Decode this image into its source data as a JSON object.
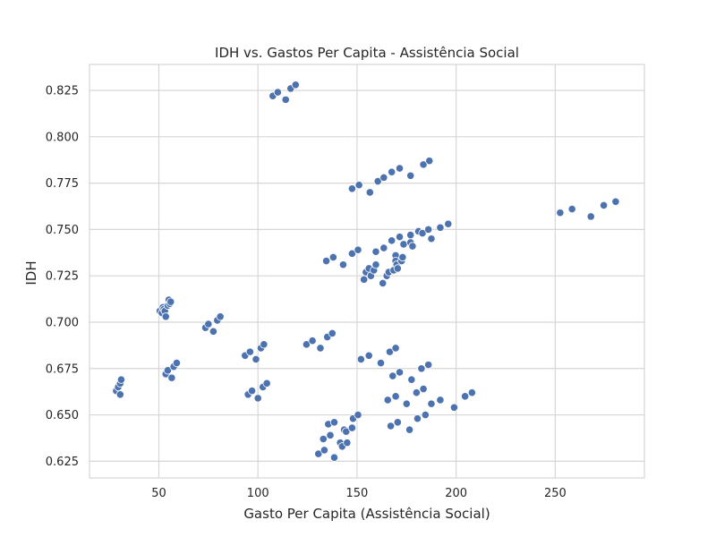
{
  "chart_data": {
    "type": "scatter",
    "title": "IDH vs. Gastos Per Capita - Assistência Social",
    "xlabel": "Gasto Per Capita (Assistência Social)",
    "ylabel": "IDH",
    "xlim": [
      15,
      295
    ],
    "ylim": [
      0.616,
      0.839
    ],
    "xticks": [
      50,
      100,
      150,
      200,
      250
    ],
    "xtick_labels": [
      "50",
      "100",
      "150",
      "200",
      "250"
    ],
    "yticks": [
      0.625,
      0.65,
      0.675,
      0.7,
      0.725,
      0.75,
      0.775,
      0.8,
      0.825
    ],
    "ytick_labels": [
      "0.625",
      "0.650",
      "0.675",
      "0.700",
      "0.725",
      "0.750",
      "0.775",
      "0.800",
      "0.825"
    ],
    "grid": true,
    "point_color": "#4c72b0",
    "series": [
      {
        "points": [
          [
            28.5,
            0.663
          ],
          [
            29.5,
            0.665
          ],
          [
            30.5,
            0.661
          ],
          [
            30.5,
            0.667
          ],
          [
            31,
            0.669
          ],
          [
            50.5,
            0.706
          ],
          [
            51.5,
            0.705
          ],
          [
            52,
            0.708
          ],
          [
            52.5,
            0.707
          ],
          [
            53,
            0.706
          ],
          [
            53.5,
            0.703
          ],
          [
            54.5,
            0.709
          ],
          [
            55,
            0.712
          ],
          [
            55.5,
            0.71
          ],
          [
            56,
            0.711
          ],
          [
            53.5,
            0.672
          ],
          [
            54.5,
            0.674
          ],
          [
            56.5,
            0.67
          ],
          [
            57.5,
            0.676
          ],
          [
            59,
            0.678
          ],
          [
            73.5,
            0.697
          ],
          [
            75,
            0.699
          ],
          [
            77.5,
            0.695
          ],
          [
            79.5,
            0.701
          ],
          [
            81,
            0.703
          ],
          [
            93.5,
            0.682
          ],
          [
            96,
            0.684
          ],
          [
            99,
            0.68
          ],
          [
            101.5,
            0.686
          ],
          [
            103,
            0.688
          ],
          [
            95,
            0.661
          ],
          [
            97,
            0.663
          ],
          [
            100,
            0.659
          ],
          [
            102.5,
            0.665
          ],
          [
            104.5,
            0.667
          ],
          [
            107.5,
            0.822
          ],
          [
            110,
            0.824
          ],
          [
            114,
            0.82
          ],
          [
            116.5,
            0.826
          ],
          [
            119,
            0.828
          ],
          [
            124.5,
            0.688
          ],
          [
            127.5,
            0.69
          ],
          [
            131.5,
            0.686
          ],
          [
            135,
            0.692
          ],
          [
            137.5,
            0.694
          ],
          [
            134.5,
            0.733
          ],
          [
            138,
            0.735
          ],
          [
            143,
            0.731
          ],
          [
            147.5,
            0.737
          ],
          [
            150.5,
            0.739
          ],
          [
            130.5,
            0.629
          ],
          [
            133,
            0.637
          ],
          [
            133.5,
            0.631
          ],
          [
            135.5,
            0.645
          ],
          [
            136.5,
            0.639
          ],
          [
            138.5,
            0.646
          ],
          [
            138.5,
            0.627
          ],
          [
            141.5,
            0.635
          ],
          [
            142.5,
            0.633
          ],
          [
            143.5,
            0.642
          ],
          [
            144.5,
            0.641
          ],
          [
            145,
            0.635
          ],
          [
            147.5,
            0.643
          ],
          [
            148,
            0.648
          ],
          [
            150.5,
            0.65
          ],
          [
            147.5,
            0.772
          ],
          [
            151,
            0.774
          ],
          [
            156.5,
            0.77
          ],
          [
            160.5,
            0.776
          ],
          [
            163.5,
            0.778
          ],
          [
            167.5,
            0.781
          ],
          [
            171.5,
            0.783
          ],
          [
            177,
            0.779
          ],
          [
            183.5,
            0.785
          ],
          [
            186.5,
            0.787
          ],
          [
            152,
            0.68
          ],
          [
            156,
            0.682
          ],
          [
            162,
            0.678
          ],
          [
            166.5,
            0.684
          ],
          [
            169.5,
            0.686
          ],
          [
            153.5,
            0.723
          ],
          [
            154.5,
            0.727
          ],
          [
            156,
            0.729
          ],
          [
            157,
            0.725
          ],
          [
            158.5,
            0.728
          ],
          [
            159.5,
            0.731
          ],
          [
            159.5,
            0.738
          ],
          [
            163,
            0.721
          ],
          [
            163.5,
            0.74
          ],
          [
            165,
            0.725
          ],
          [
            166,
            0.727
          ],
          [
            167.5,
            0.744
          ],
          [
            168.5,
            0.728
          ],
          [
            169.5,
            0.736
          ],
          [
            169.5,
            0.733
          ],
          [
            170,
            0.731
          ],
          [
            170.5,
            0.729
          ],
          [
            171.5,
            0.746
          ],
          [
            172.5,
            0.733
          ],
          [
            173,
            0.735
          ],
          [
            173.5,
            0.742
          ],
          [
            177,
            0.743
          ],
          [
            177,
            0.747
          ],
          [
            178,
            0.741
          ],
          [
            181,
            0.749
          ],
          [
            183,
            0.748
          ],
          [
            186,
            0.75
          ],
          [
            187.5,
            0.745
          ],
          [
            192,
            0.751
          ],
          [
            196,
            0.753
          ],
          [
            165.5,
            0.658
          ],
          [
            167,
            0.644
          ],
          [
            168,
            0.671
          ],
          [
            169.5,
            0.66
          ],
          [
            170.5,
            0.646
          ],
          [
            171.5,
            0.673
          ],
          [
            175,
            0.656
          ],
          [
            176.5,
            0.642
          ],
          [
            177.5,
            0.669
          ],
          [
            180,
            0.662
          ],
          [
            180.5,
            0.648
          ],
          [
            182.5,
            0.675
          ],
          [
            183.5,
            0.664
          ],
          [
            184.5,
            0.65
          ],
          [
            186,
            0.677
          ],
          [
            187.5,
            0.656
          ],
          [
            192,
            0.658
          ],
          [
            199,
            0.654
          ],
          [
            204.5,
            0.66
          ],
          [
            208,
            0.662
          ],
          [
            252.5,
            0.759
          ],
          [
            258.5,
            0.761
          ],
          [
            268,
            0.757
          ],
          [
            274.5,
            0.763
          ],
          [
            280.5,
            0.765
          ]
        ]
      }
    ]
  }
}
